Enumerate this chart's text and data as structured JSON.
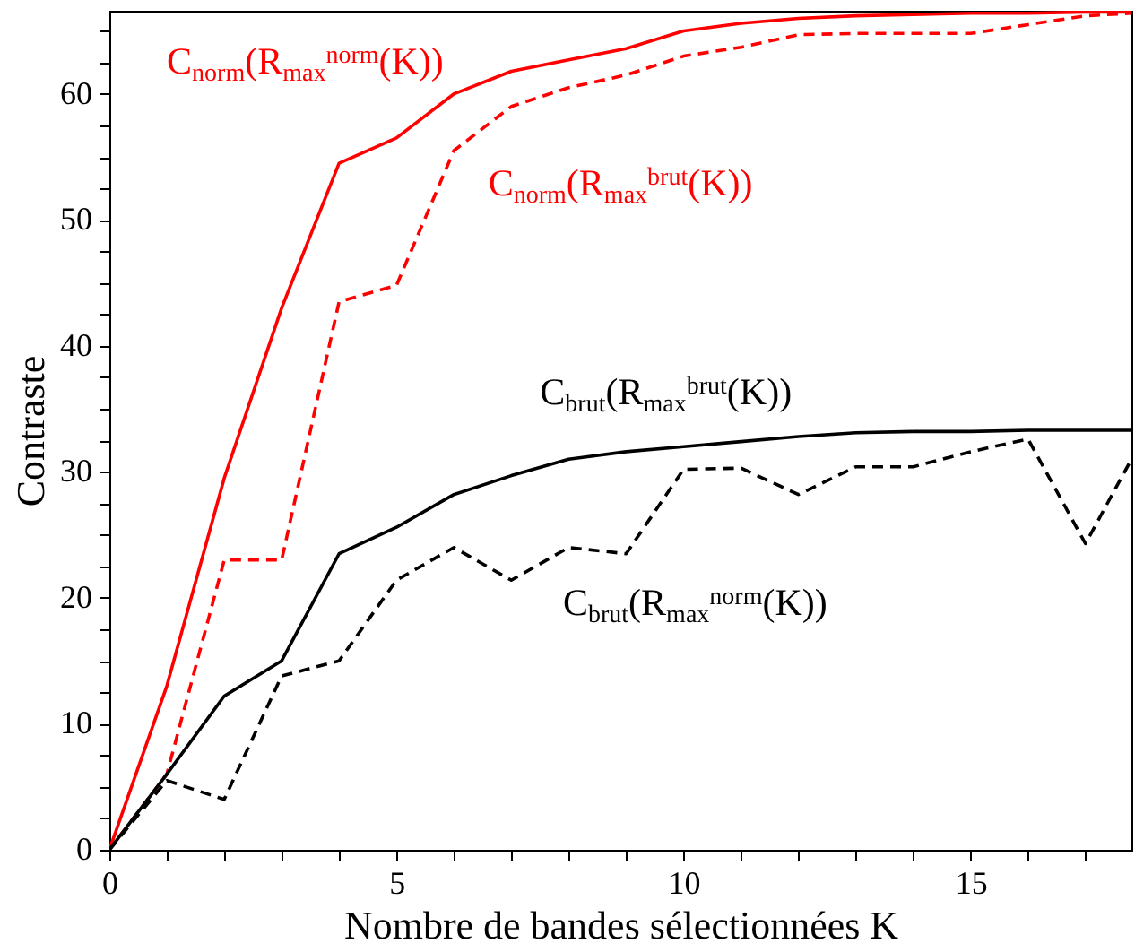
{
  "chart_data": {
    "type": "line",
    "xlabel": "Nombre de bandes sélectionnées K",
    "ylabel": "Contraste",
    "x": [
      0,
      1,
      2,
      3,
      4,
      5,
      6,
      7,
      8,
      9,
      10,
      11,
      12,
      13,
      14,
      15,
      16,
      17,
      17.8
    ],
    "series": [
      {
        "name": "C$_{norm}$(R$_{max}$$^{norm}$(K))",
        "color": "#ff0000",
        "line_style": "solid",
        "values": [
          0,
          13,
          29.5,
          43,
          54.5,
          56.5,
          60,
          61.8,
          62.7,
          63.6,
          65,
          65.6,
          66,
          66.2,
          66.3,
          66.4,
          66.4,
          66.5,
          66.5
        ]
      },
      {
        "name": "C$_{norm}$(R$_{max}$$^{brut}$(K))",
        "color": "#ff0000",
        "line_style": "dashed",
        "values": [
          0,
          6,
          23,
          23,
          43.5,
          44.8,
          55.5,
          59,
          60.5,
          61.5,
          63,
          63.7,
          64.7,
          64.8,
          64.8,
          64.8,
          65.5,
          66.2,
          66.4
        ]
      },
      {
        "name": "C$_{brut}$(R$_{max}$$^{brut}$(K))",
        "color": "#000000",
        "line_style": "solid",
        "values": [
          0,
          6,
          12.2,
          15,
          23.5,
          25.6,
          28.2,
          29.7,
          31,
          31.6,
          32,
          32.4,
          32.8,
          33.1,
          33.2,
          33.2,
          33.3,
          33.3,
          33.3
        ]
      },
      {
        "name": "C$_{brut}$(R$_{max}$$^{norm}$(K))",
        "color": "#000000",
        "line_style": "dashed",
        "values": [
          0,
          5.5,
          4,
          13.8,
          15,
          21.4,
          24,
          21.4,
          24,
          23.5,
          30.2,
          30.3,
          28.2,
          30.4,
          30.4,
          31.6,
          32.6,
          24.3,
          31
        ]
      }
    ],
    "xlim": [
      0,
      17.8
    ],
    "ylim": [
      0,
      66.6
    ],
    "xticks": [
      0,
      {
        "value": 1,
        "label": null
      },
      {
        "value": 2,
        "label": null
      },
      {
        "value": 3,
        "label": null
      },
      {
        "value": 4,
        "label": null
      },
      5,
      {
        "value": 6,
        "label": null
      },
      {
        "value": 7,
        "label": null
      },
      {
        "value": 8,
        "label": null
      },
      {
        "value": 9,
        "label": null
      },
      10,
      {
        "value": 11,
        "label": null
      },
      {
        "value": 12,
        "label": null
      },
      {
        "value": 13,
        "label": null
      },
      {
        "value": 14,
        "label": null
      },
      15,
      {
        "value": 16,
        "label": null
      },
      {
        "value": 17,
        "label": null
      }
    ],
    "yticks": [
      0,
      {
        "value": 2.5,
        "label": null
      },
      {
        "value": 5,
        "label": null
      },
      {
        "value": 7.5,
        "label": null
      },
      10,
      {
        "value": 12.5,
        "label": null
      },
      {
        "value": 15,
        "label": null
      },
      {
        "value": 17.5,
        "label": null
      },
      20,
      {
        "value": 22.5,
        "label": null
      },
      {
        "value": 25,
        "label": null
      },
      {
        "value": 27.5,
        "label": null
      },
      30,
      {
        "value": 32.5,
        "label": null
      },
      {
        "value": 35,
        "label": null
      },
      {
        "value": 37.5,
        "label": null
      },
      40,
      {
        "value": 42.5,
        "label": null
      },
      {
        "value": 45,
        "label": null
      },
      {
        "value": 47.5,
        "label": null
      },
      50,
      {
        "value": 52.5,
        "label": null
      },
      {
        "value": 55,
        "label": null
      },
      {
        "value": 57.5,
        "label": null
      },
      60,
      {
        "value": 62.5,
        "label": null
      },
      {
        "value": 65,
        "label": null
      }
    ],
    "grid": false,
    "legend": false
  }
}
